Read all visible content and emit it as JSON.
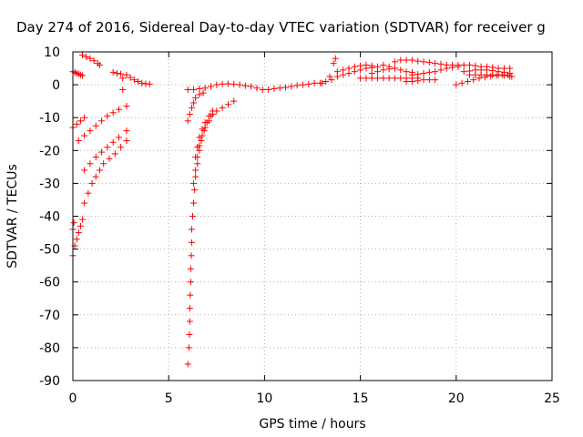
{
  "chart_data": {
    "type": "scatter",
    "title": "Day 274 of 2016, Sidereal Day-to-day VTEC variation (SDTVAR) for receiver g",
    "xlabel": "GPS time / hours",
    "ylabel": "SDTVAR / TECUs",
    "xlim": [
      0,
      25
    ],
    "ylim": [
      -90,
      10
    ],
    "x_ticks": [
      0,
      5,
      10,
      15,
      20,
      25
    ],
    "y_ticks": [
      10,
      0,
      -10,
      -20,
      -30,
      -40,
      -50,
      -60,
      -70,
      -80,
      -90
    ],
    "grid": true,
    "legend": "none",
    "marker": "plus",
    "colors": {
      "points": "#ff0000",
      "grid": "#b0b0b0",
      "axes": "#000000"
    },
    "series": [
      {
        "values": [
          [
            0.0,
            4.0
          ],
          [
            0.1,
            3.8
          ],
          [
            0.2,
            3.5
          ],
          [
            0.3,
            3.3
          ],
          [
            0.4,
            3.0
          ],
          [
            0.5,
            2.8
          ],
          [
            0.5,
            9.0
          ],
          [
            0.7,
            8.5
          ],
          [
            0.9,
            8.0
          ],
          [
            1.1,
            7.3
          ],
          [
            1.3,
            6.5
          ],
          [
            1.4,
            6.0
          ],
          [
            2.1,
            3.8
          ],
          [
            2.3,
            3.5
          ],
          [
            2.5,
            3.3
          ],
          [
            2.6,
            2.0
          ],
          [
            2.6,
            -1.5
          ],
          [
            2.8,
            3.0
          ],
          [
            3.0,
            2.2
          ],
          [
            3.2,
            1.5
          ],
          [
            3.4,
            1.0
          ],
          [
            3.6,
            0.5
          ],
          [
            3.8,
            0.3
          ],
          [
            4.0,
            0.2
          ],
          [
            0.0,
            -13.0
          ],
          [
            0.2,
            -12.0
          ],
          [
            0.4,
            -11.0
          ],
          [
            0.6,
            -10.0
          ],
          [
            0.3,
            -17.0
          ],
          [
            0.6,
            -15.5
          ],
          [
            0.9,
            -14.0
          ],
          [
            1.2,
            -12.5
          ],
          [
            1.5,
            -11.0
          ],
          [
            1.8,
            -9.5
          ],
          [
            2.1,
            -8.5
          ],
          [
            2.4,
            -7.5
          ],
          [
            2.8,
            -6.5
          ],
          [
            0.6,
            -26.0
          ],
          [
            0.9,
            -24.0
          ],
          [
            1.2,
            -22.0
          ],
          [
            1.5,
            -20.5
          ],
          [
            1.8,
            -19.0
          ],
          [
            2.1,
            -17.5
          ],
          [
            2.4,
            -16.0
          ],
          [
            2.8,
            -14.0
          ],
          [
            0.6,
            -36.0
          ],
          [
            0.8,
            -33.0
          ],
          [
            1.0,
            -30.0
          ],
          [
            1.2,
            -28.0
          ],
          [
            1.4,
            -26.0
          ],
          [
            1.6,
            -24.0
          ],
          [
            1.9,
            -22.5
          ],
          [
            2.2,
            -21.0
          ],
          [
            2.5,
            -19.0
          ],
          [
            2.8,
            -17.0
          ],
          [
            0.0,
            -52.0
          ],
          [
            0.1,
            -49.0
          ],
          [
            0.2,
            -47.0
          ],
          [
            0.3,
            -45.0
          ],
          [
            0.4,
            -43.0
          ],
          [
            0.5,
            -41.0
          ],
          [
            0.0,
            -44.0
          ],
          [
            0.05,
            -42.0
          ],
          [
            6.0,
            -85.0
          ],
          [
            6.05,
            -80.0
          ],
          [
            6.08,
            -76.0
          ],
          [
            6.1,
            -72.0
          ],
          [
            6.1,
            -68.0
          ],
          [
            6.12,
            -64.0
          ],
          [
            6.15,
            -60.0
          ],
          [
            6.15,
            -56.0
          ],
          [
            6.18,
            -52.0
          ],
          [
            6.2,
            -48.0
          ],
          [
            6.2,
            -44.0
          ],
          [
            6.25,
            -40.0
          ],
          [
            6.3,
            -36.0
          ],
          [
            6.35,
            -32.0
          ],
          [
            6.4,
            -28.0
          ],
          [
            6.5,
            -24.0
          ],
          [
            6.6,
            -20.0
          ],
          [
            6.7,
            -17.0
          ],
          [
            6.85,
            -14.0
          ],
          [
            7.0,
            -11.5
          ],
          [
            7.2,
            -9.5
          ],
          [
            7.5,
            -8.0
          ],
          [
            7.8,
            -7.0
          ],
          [
            8.1,
            -6.0
          ],
          [
            8.4,
            -5.0
          ],
          [
            6.3,
            -30.0
          ],
          [
            6.4,
            -26.0
          ],
          [
            6.5,
            -22.0
          ],
          [
            6.6,
            -18.5
          ],
          [
            6.75,
            -15.5
          ],
          [
            6.9,
            -13.0
          ],
          [
            7.1,
            -11.0
          ],
          [
            7.3,
            -9.0
          ],
          [
            6.4,
            -22.0
          ],
          [
            6.5,
            -19.0
          ],
          [
            6.6,
            -16.0
          ],
          [
            6.75,
            -13.5
          ],
          [
            6.9,
            -11.5
          ],
          [
            7.1,
            -9.5
          ],
          [
            7.3,
            -8.0
          ],
          [
            6.0,
            -11.0
          ],
          [
            6.1,
            -9.0
          ],
          [
            6.2,
            -7.0
          ],
          [
            6.3,
            -5.5
          ],
          [
            6.4,
            -4.0
          ],
          [
            6.6,
            -3.0
          ],
          [
            6.8,
            -2.5
          ],
          [
            6.0,
            -1.5
          ],
          [
            6.3,
            -1.5
          ],
          [
            6.6,
            -1.2
          ],
          [
            6.9,
            -1.0
          ],
          [
            7.2,
            -0.5
          ],
          [
            7.5,
            0.0
          ],
          [
            7.8,
            0.2
          ],
          [
            8.1,
            0.3
          ],
          [
            8.4,
            0.2
          ],
          [
            8.7,
            0.0
          ],
          [
            9.0,
            -0.3
          ],
          [
            9.3,
            -0.5
          ],
          [
            9.6,
            -1.0
          ],
          [
            9.9,
            -1.5
          ],
          [
            10.2,
            -1.5
          ],
          [
            10.5,
            -1.2
          ],
          [
            10.8,
            -1.0
          ],
          [
            11.1,
            -0.8
          ],
          [
            11.4,
            -0.5
          ],
          [
            11.7,
            -0.2
          ],
          [
            12.0,
            0.0
          ],
          [
            12.3,
            0.2
          ],
          [
            12.6,
            0.5
          ],
          [
            12.9,
            0.5
          ],
          [
            13.0,
            0.5
          ],
          [
            13.2,
            1.0
          ],
          [
            13.4,
            2.5
          ],
          [
            13.6,
            6.5
          ],
          [
            13.7,
            8.0
          ],
          [
            13.5,
            1.5
          ],
          [
            13.8,
            2.5
          ],
          [
            14.1,
            3.0
          ],
          [
            14.4,
            3.5
          ],
          [
            14.7,
            4.0
          ],
          [
            15.0,
            4.5
          ],
          [
            15.3,
            5.0
          ],
          [
            15.6,
            5.2
          ],
          [
            13.8,
            4.0
          ],
          [
            14.1,
            4.5
          ],
          [
            14.4,
            5.0
          ],
          [
            14.7,
            5.5
          ],
          [
            15.0,
            5.8
          ],
          [
            15.3,
            6.0
          ],
          [
            15.6,
            5.8
          ],
          [
            15.9,
            5.5
          ],
          [
            15.0,
            2.0
          ],
          [
            15.3,
            2.0
          ],
          [
            15.6,
            2.0
          ],
          [
            15.9,
            2.0
          ],
          [
            16.2,
            2.0
          ],
          [
            16.5,
            2.0
          ],
          [
            16.8,
            2.0
          ],
          [
            17.1,
            2.0
          ],
          [
            17.4,
            2.0
          ],
          [
            17.7,
            2.0
          ],
          [
            18.0,
            2.0
          ],
          [
            15.6,
            3.5
          ],
          [
            15.9,
            4.0
          ],
          [
            16.2,
            4.5
          ],
          [
            16.5,
            4.8
          ],
          [
            16.8,
            5.0
          ],
          [
            16.2,
            6.0
          ],
          [
            16.5,
            5.5
          ],
          [
            16.8,
            5.0
          ],
          [
            17.1,
            4.5
          ],
          [
            17.4,
            4.0
          ],
          [
            17.7,
            3.8
          ],
          [
            16.8,
            7.0
          ],
          [
            17.1,
            7.5
          ],
          [
            17.4,
            7.5
          ],
          [
            17.7,
            7.5
          ],
          [
            18.0,
            7.2
          ],
          [
            18.3,
            7.0
          ],
          [
            18.6,
            6.8
          ],
          [
            18.9,
            6.5
          ],
          [
            19.2,
            6.3
          ],
          [
            17.7,
            3.0
          ],
          [
            18.0,
            3.2
          ],
          [
            18.3,
            3.5
          ],
          [
            18.6,
            3.8
          ],
          [
            18.9,
            4.0
          ],
          [
            19.2,
            4.5
          ],
          [
            19.5,
            5.0
          ],
          [
            19.8,
            5.3
          ],
          [
            20.1,
            5.5
          ],
          [
            17.4,
            1.0
          ],
          [
            17.7,
            1.0
          ],
          [
            18.0,
            1.2
          ],
          [
            18.3,
            1.5
          ],
          [
            18.6,
            1.5
          ],
          [
            18.9,
            1.5
          ],
          [
            19.5,
            6.0
          ],
          [
            19.8,
            6.0
          ],
          [
            20.1,
            6.0
          ],
          [
            20.4,
            6.0
          ],
          [
            20.7,
            6.0
          ],
          [
            21.0,
            5.8
          ],
          [
            21.3,
            5.5
          ],
          [
            21.6,
            5.5
          ],
          [
            21.9,
            5.3
          ],
          [
            22.2,
            5.0
          ],
          [
            22.5,
            5.0
          ],
          [
            22.8,
            5.0
          ],
          [
            20.4,
            4.0
          ],
          [
            20.7,
            4.2
          ],
          [
            21.0,
            4.5
          ],
          [
            21.3,
            4.5
          ],
          [
            21.6,
            4.5
          ],
          [
            21.9,
            4.3
          ],
          [
            22.2,
            4.0
          ],
          [
            22.5,
            3.8
          ],
          [
            22.8,
            3.5
          ],
          [
            20.0,
            0.0
          ],
          [
            20.3,
            0.5
          ],
          [
            20.6,
            1.0
          ],
          [
            20.9,
            1.5
          ],
          [
            21.2,
            2.0
          ],
          [
            21.5,
            2.3
          ],
          [
            21.8,
            2.6
          ],
          [
            22.1,
            2.8
          ],
          [
            22.4,
            3.0
          ],
          [
            22.7,
            3.0
          ],
          [
            20.7,
            3.0
          ],
          [
            21.0,
            3.0
          ],
          [
            21.3,
            3.0
          ],
          [
            21.6,
            3.0
          ],
          [
            21.9,
            3.0
          ],
          [
            22.2,
            3.0
          ],
          [
            22.5,
            2.8
          ],
          [
            22.8,
            2.5
          ],
          [
            22.9,
            2.5
          ]
        ]
      }
    ]
  }
}
